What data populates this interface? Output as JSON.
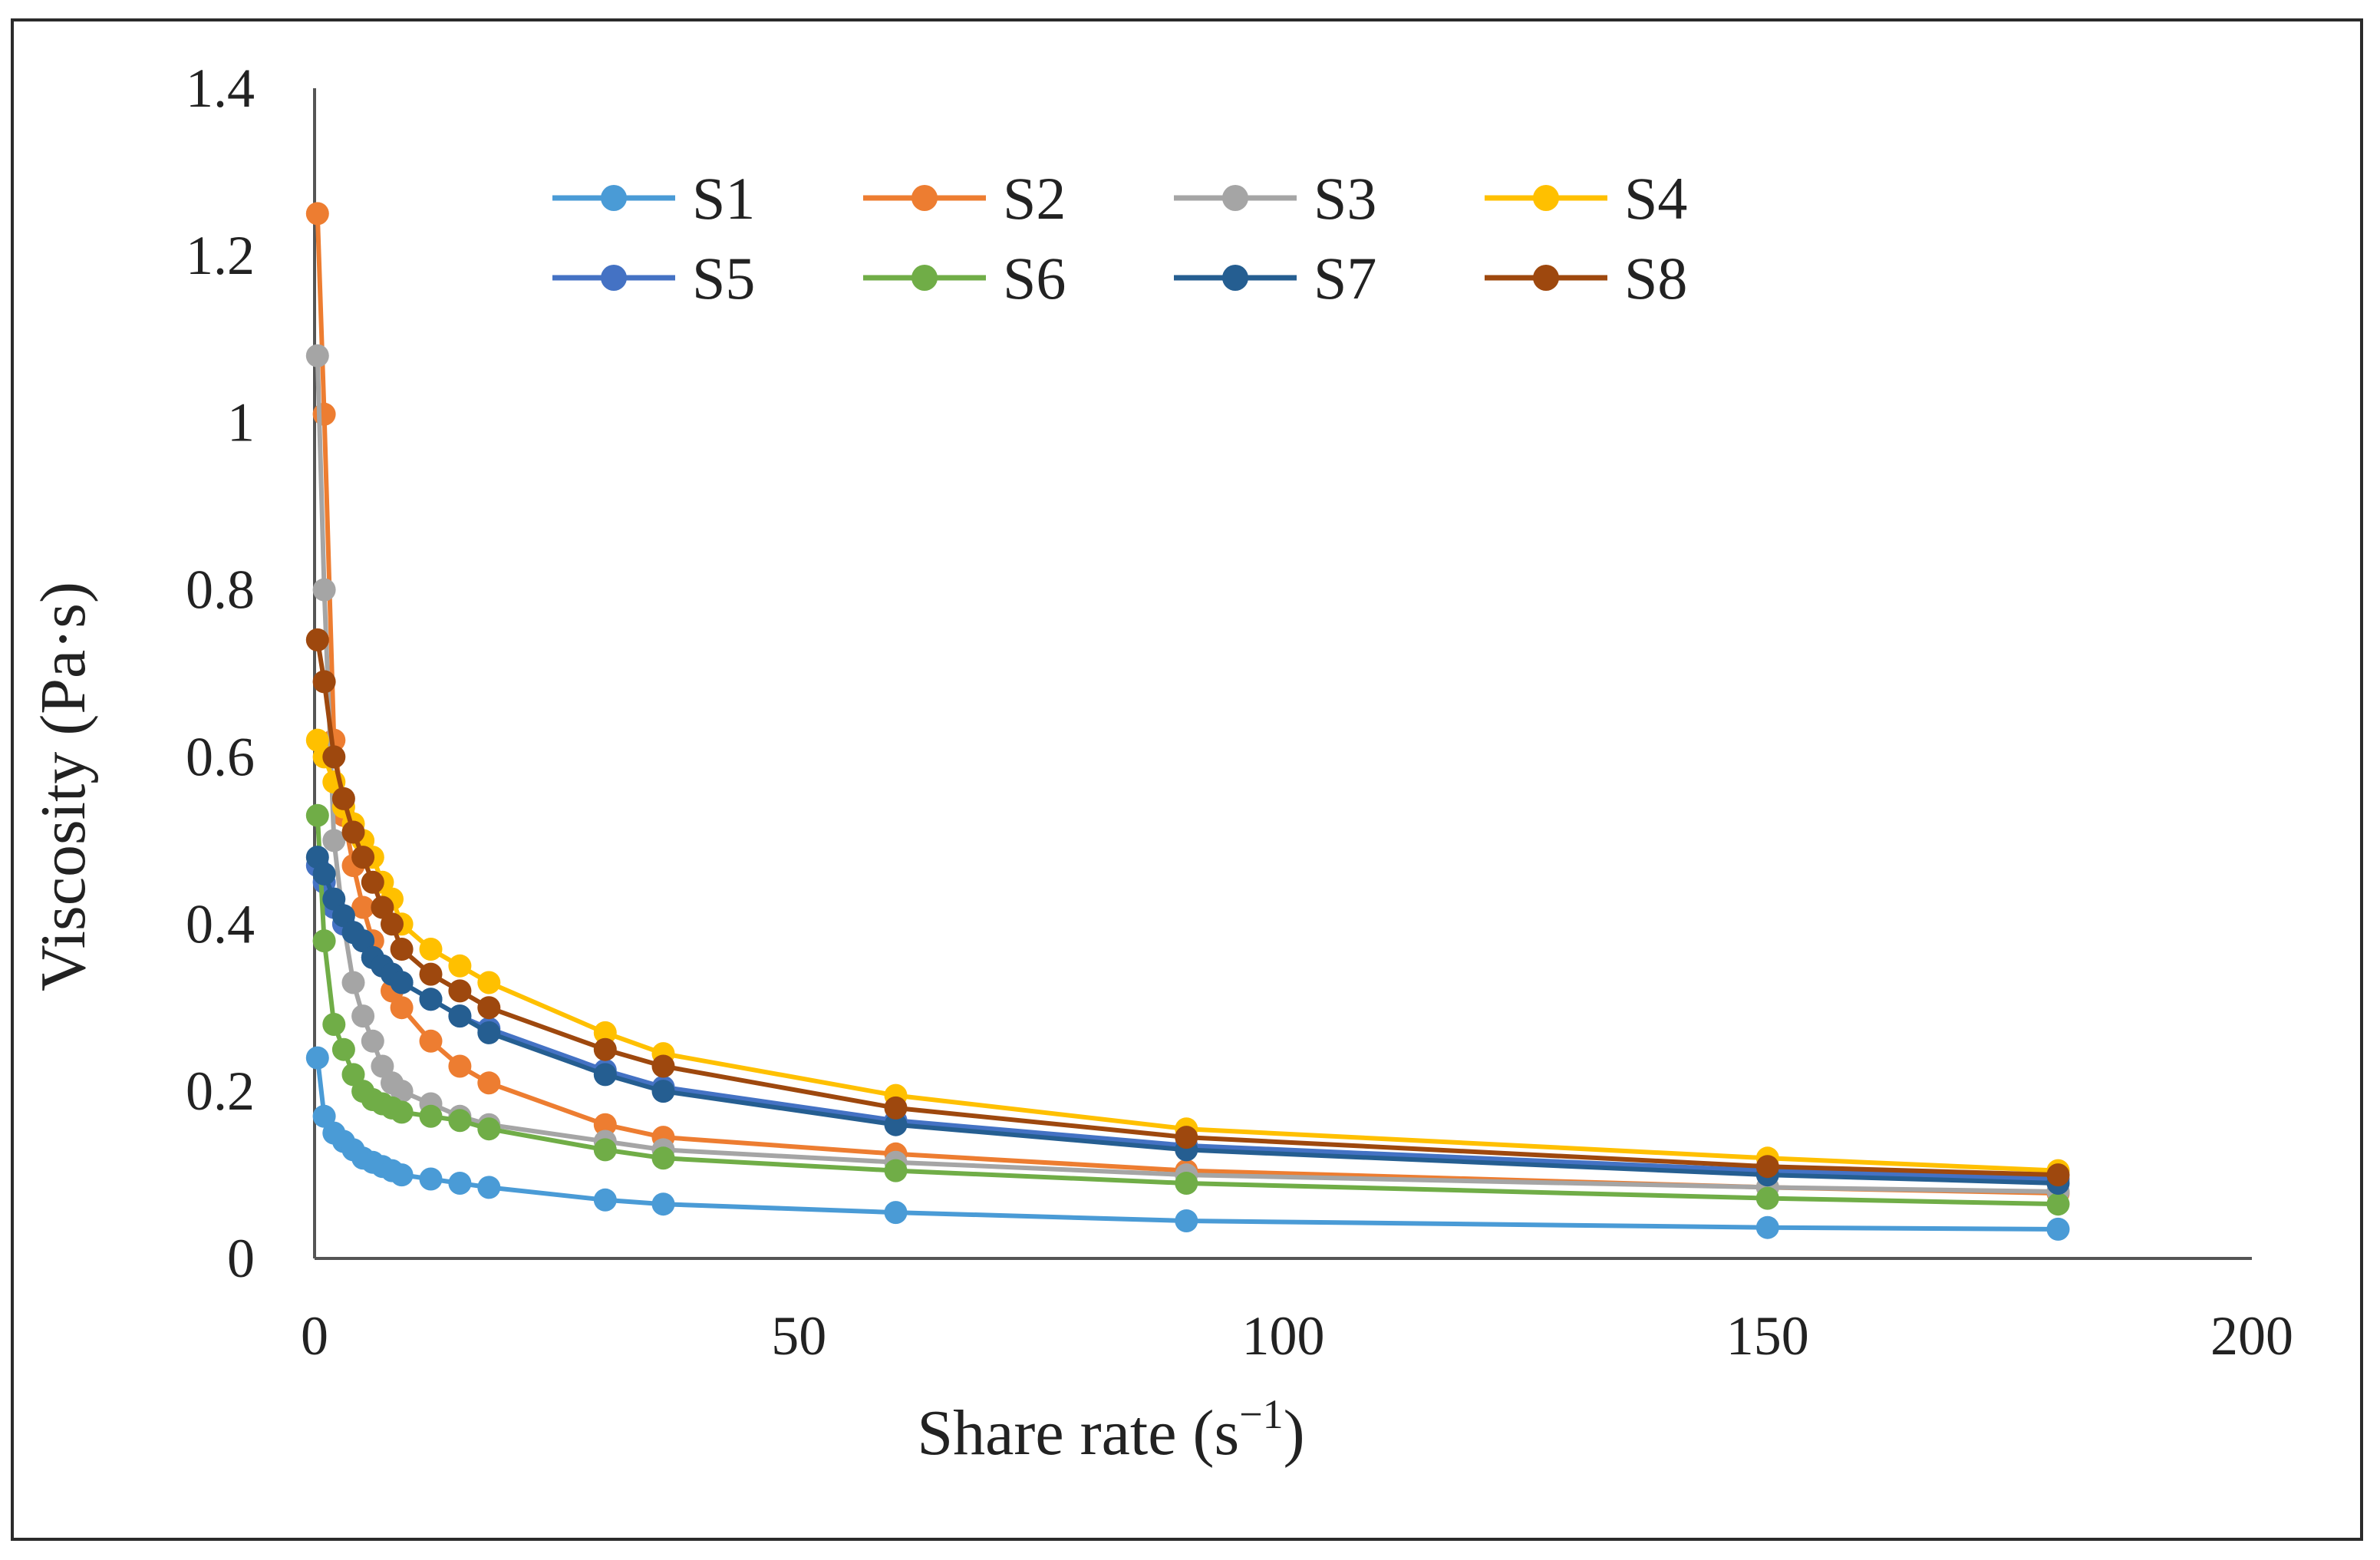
{
  "chart_data": {
    "type": "line",
    "title": "",
    "xlabel": "Share rate (s",
    "xlabel_sup": "−1",
    "xlabel_suffix": ")",
    "ylabel": "Viscosity (Pa·s)",
    "xlim": [
      0,
      200
    ],
    "ylim": [
      0,
      1.4
    ],
    "x_ticks": [
      "0",
      "50",
      "100",
      "150",
      "200"
    ],
    "y_ticks": [
      "0",
      "0.2",
      "0.4",
      "0.6",
      "0.8",
      "1",
      "1.2",
      "1.4"
    ],
    "grid": false,
    "legend_position": "top",
    "x": [
      0.3,
      1,
      2,
      3,
      4,
      5,
      6,
      7,
      8,
      9,
      12,
      15,
      18,
      30,
      36,
      60,
      90,
      150,
      180
    ],
    "series": [
      {
        "name": "S1",
        "color": "#4a9bd6",
        "values": [
          0.24,
          0.17,
          0.15,
          0.14,
          0.13,
          0.12,
          0.115,
          0.11,
          0.105,
          0.1,
          0.095,
          0.09,
          0.085,
          0.07,
          0.065,
          0.055,
          0.045,
          0.037,
          0.035
        ]
      },
      {
        "name": "S2",
        "color": "#ed7d31",
        "values": [
          1.25,
          1.01,
          0.62,
          0.53,
          0.47,
          0.42,
          0.38,
          0.35,
          0.32,
          0.3,
          0.26,
          0.23,
          0.21,
          0.16,
          0.145,
          0.125,
          0.105,
          0.085,
          0.078
        ]
      },
      {
        "name": "S3",
        "color": "#a5a5a5",
        "values": [
          1.08,
          0.8,
          0.5,
          0.4,
          0.33,
          0.29,
          0.26,
          0.23,
          0.21,
          0.2,
          0.185,
          0.17,
          0.16,
          0.14,
          0.13,
          0.115,
          0.1,
          0.085,
          0.08
        ]
      },
      {
        "name": "S4",
        "color": "#ffc000",
        "values": [
          0.62,
          0.6,
          0.57,
          0.54,
          0.52,
          0.5,
          0.48,
          0.45,
          0.43,
          0.4,
          0.37,
          0.35,
          0.33,
          0.27,
          0.245,
          0.195,
          0.155,
          0.12,
          0.105
        ]
      },
      {
        "name": "S5",
        "color": "#4472c4",
        "values": [
          0.47,
          0.45,
          0.42,
          0.4,
          0.39,
          0.38,
          0.36,
          0.35,
          0.34,
          0.33,
          0.31,
          0.29,
          0.275,
          0.225,
          0.205,
          0.165,
          0.135,
          0.105,
          0.095
        ]
      },
      {
        "name": "S6",
        "color": "#70ad47",
        "values": [
          0.53,
          0.38,
          0.28,
          0.25,
          0.22,
          0.2,
          0.19,
          0.185,
          0.18,
          0.175,
          0.17,
          0.165,
          0.155,
          0.13,
          0.12,
          0.105,
          0.09,
          0.072,
          0.065
        ]
      },
      {
        "name": "S7",
        "color": "#255e91",
        "values": [
          0.48,
          0.46,
          0.43,
          0.41,
          0.39,
          0.38,
          0.36,
          0.35,
          0.34,
          0.33,
          0.31,
          0.29,
          0.27,
          0.22,
          0.2,
          0.16,
          0.13,
          0.1,
          0.09
        ]
      },
      {
        "name": "S8",
        "color": "#9e480e",
        "values": [
          0.74,
          0.69,
          0.6,
          0.55,
          0.51,
          0.48,
          0.45,
          0.42,
          0.4,
          0.37,
          0.34,
          0.32,
          0.3,
          0.25,
          0.23,
          0.18,
          0.145,
          0.11,
          0.1
        ]
      }
    ]
  }
}
